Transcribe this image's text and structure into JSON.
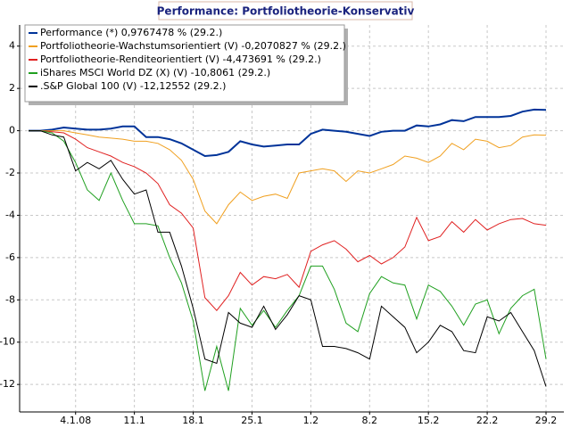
{
  "chart_data": {
    "type": "line",
    "title": "Performance: Portfoliotheorie-Konservativ",
    "categories": [
      null,
      null,
      null,
      null,
      "4.1.08",
      null,
      null,
      null,
      null,
      "11.1",
      null,
      null,
      null,
      null,
      "18.1",
      null,
      null,
      null,
      null,
      "25.1",
      null,
      null,
      null,
      null,
      "1.2",
      null,
      null,
      null,
      null,
      "8.2",
      null,
      null,
      null,
      null,
      "15.2",
      null,
      null,
      null,
      null,
      "22.2",
      null,
      null,
      null,
      null,
      "29.2"
    ],
    "series": [
      {
        "name": "Performance (*) 0,9767478 % (29.2.)",
        "color": "#003399",
        "values": [
          0,
          0,
          0.05,
          0.15,
          0.1,
          0.05,
          0.05,
          0.1,
          0.2,
          0.2,
          -0.3,
          -0.3,
          -0.4,
          -0.6,
          -0.9,
          -1.2,
          -1.15,
          -1.0,
          -0.5,
          -0.65,
          -0.75,
          -0.7,
          -0.65,
          -0.65,
          -0.15,
          0.05,
          0.0,
          -0.05,
          -0.15,
          -0.25,
          -0.05,
          0.0,
          0.0,
          0.25,
          0.2,
          0.3,
          0.5,
          0.45,
          0.65,
          0.65,
          0.65,
          0.7,
          0.9,
          1.0,
          0.98
        ]
      },
      {
        "name": "Portfoliotheorie-Wachstumsorientiert (V) -0,2070827 % (29.2.)",
        "color": "#f0a020",
        "values": [
          0,
          0,
          0,
          0,
          -0.1,
          -0.2,
          -0.3,
          -0.35,
          -0.4,
          -0.5,
          -0.5,
          -0.6,
          -0.9,
          -1.4,
          -2.3,
          -3.8,
          -4.4,
          -3.5,
          -2.9,
          -3.3,
          -3.1,
          -3.0,
          -3.2,
          -2.0,
          -1.9,
          -1.8,
          -1.9,
          -2.4,
          -1.9,
          -2.0,
          -1.8,
          -1.6,
          -1.2,
          -1.3,
          -1.5,
          -1.2,
          -0.6,
          -0.9,
          -0.4,
          -0.5,
          -0.8,
          -0.7,
          -0.3,
          -0.2,
          -0.21
        ]
      },
      {
        "name": "Portfoliotheorie-Renditeorientiert (V) -4,473691 % (29.2.)",
        "color": "#e02020",
        "values": [
          0,
          0,
          -0.05,
          -0.1,
          -0.4,
          -0.8,
          -1.0,
          -1.2,
          -1.5,
          -1.7,
          -2.0,
          -2.5,
          -3.5,
          -3.9,
          -4.6,
          -7.9,
          -8.5,
          -7.8,
          -6.7,
          -7.3,
          -6.9,
          -7.0,
          -6.8,
          -7.4,
          -5.7,
          -5.4,
          -5.2,
          -5.6,
          -6.2,
          -5.9,
          -6.3,
          -6.0,
          -5.5,
          -4.1,
          -5.2,
          -5.0,
          -4.3,
          -4.8,
          -4.2,
          -4.7,
          -4.4,
          -4.2,
          -4.15,
          -4.4,
          -4.47
        ]
      },
      {
        "name": "iShares MSCI World DZ (X) (V) -10,8061 (29.2.)",
        "color": "#20a020",
        "values": [
          0,
          0,
          -0.1,
          -0.5,
          -1.5,
          -2.8,
          -3.3,
          -2.0,
          -3.3,
          -4.4,
          -4.4,
          -4.5,
          -6.0,
          -7.2,
          -9.0,
          -12.3,
          -10.2,
          -12.3,
          -8.4,
          -9.2,
          -8.5,
          -9.3,
          -8.5,
          -7.8,
          -6.4,
          -6.4,
          -7.5,
          -9.1,
          -9.5,
          -7.7,
          -6.9,
          -7.2,
          -7.3,
          -8.9,
          -7.3,
          -7.6,
          -8.3,
          -9.2,
          -8.2,
          -8.0,
          -9.6,
          -8.4,
          -7.8,
          -7.5,
          -10.8
        ]
      },
      {
        "name": ".S&P Global 100 (V) -12,12552 (29.2.)",
        "color": "#000000",
        "values": [
          0,
          0,
          -0.2,
          -0.3,
          -1.9,
          -1.5,
          -1.8,
          -1.4,
          -2.3,
          -3.0,
          -2.8,
          -4.8,
          -4.8,
          -6.4,
          -8.4,
          -10.8,
          -11.0,
          -8.6,
          -9.1,
          -9.3,
          -8.3,
          -9.4,
          -8.7,
          -7.8,
          -8.0,
          -10.2,
          -10.2,
          -10.3,
          -10.5,
          -10.8,
          -8.3,
          -8.8,
          -9.3,
          -10.5,
          -10.0,
          -9.2,
          -9.5,
          -10.4,
          -10.5,
          -8.8,
          -9.0,
          -8.6,
          -9.5,
          -10.4,
          -12.1
        ]
      }
    ],
    "ylim": [
      -13.3,
      5
    ],
    "yticks": [
      -12,
      -10,
      -8,
      -6,
      -4,
      -2,
      0,
      2,
      4
    ],
    "grid": true
  }
}
